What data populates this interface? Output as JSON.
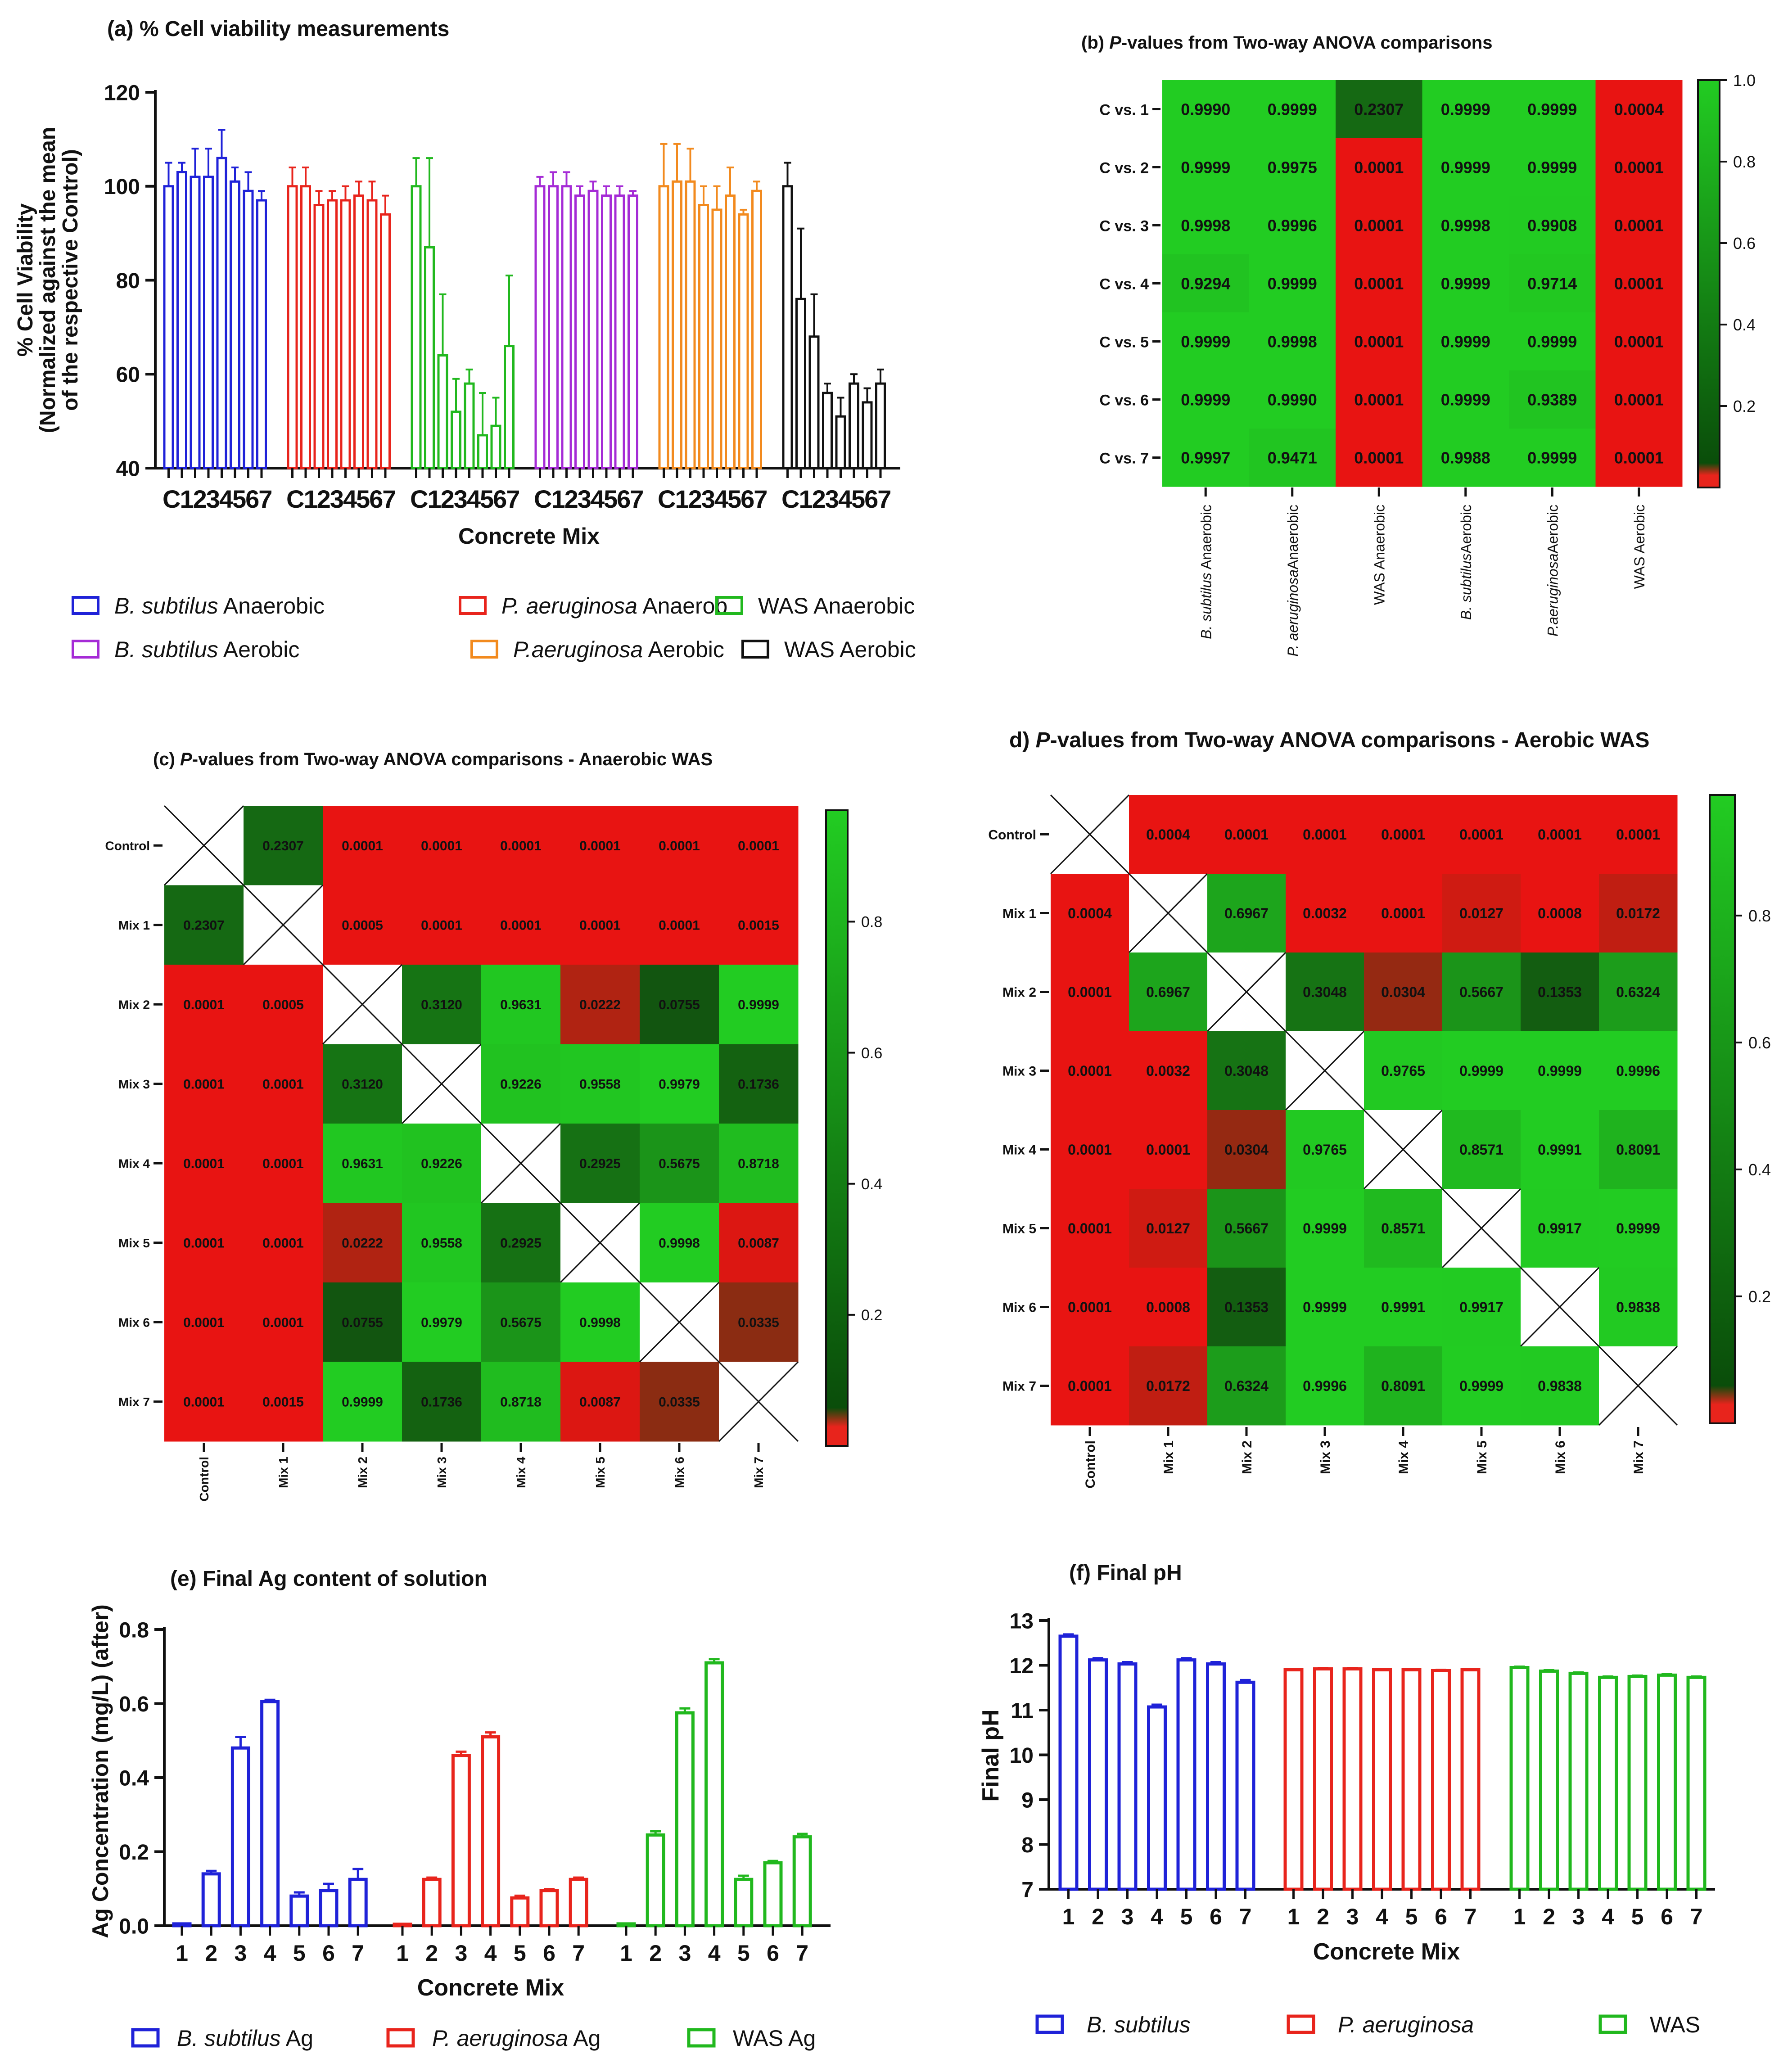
{
  "chart_data": [
    {
      "id": "a",
      "type": "bar",
      "title": "(a) % Cell viability measurements",
      "xlabel": "Concrete Mix",
      "ylabel_lines": [
        "% Cell Viability",
        "(Normalized against the mean",
        "of the respective Control)"
      ],
      "ylim": [
        40,
        120
      ],
      "yticks": [
        40,
        60,
        80,
        100,
        120
      ],
      "categories": [
        "C",
        "1",
        "2",
        "3",
        "4",
        "5",
        "6",
        "7"
      ],
      "series": [
        {
          "name": "B. subtilus Anaerobic",
          "italic": "B. subtilus",
          "rest": " Anaerobic",
          "color": "#1f22d8",
          "values": [
            100,
            103,
            102,
            102,
            106,
            101,
            99,
            97
          ],
          "errors": [
            5,
            2,
            6,
            6,
            6,
            3,
            4,
            2
          ]
        },
        {
          "name": "P. aeruginosa Anaerobic",
          "italic": "P. aeruginosa",
          "rest": " Anaerob",
          "color": "#e8241c",
          "values": [
            100,
            100,
            96,
            97,
            97,
            98,
            97,
            94
          ],
          "errors": [
            4,
            4,
            3,
            2,
            3,
            3,
            4,
            4
          ]
        },
        {
          "name": "WAS Anaerobic",
          "italic": "",
          "rest": "WAS Anaerobic",
          "color": "#21b81e",
          "values": [
            100,
            87,
            64,
            52,
            58,
            47,
            49,
            66
          ],
          "errors": [
            6,
            19,
            13,
            7,
            3,
            9,
            6,
            15
          ]
        },
        {
          "name": "B. subtilus Aerobic",
          "italic": "B. subtilus",
          "rest": " Aerobic",
          "color": "#a52bd6",
          "values": [
            100,
            100,
            100,
            98,
            99,
            98,
            98,
            98
          ],
          "errors": [
            2,
            3,
            3,
            2,
            2,
            2,
            2,
            1
          ]
        },
        {
          "name": "P.aeruginosa Aerobic",
          "italic": "P.aeruginosa",
          "rest": " Aerobic",
          "color": "#f28a1e",
          "values": [
            100,
            101,
            101,
            96,
            95,
            98,
            94,
            99
          ],
          "errors": [
            9,
            8,
            7,
            4,
            5,
            6,
            1,
            2
          ]
        },
        {
          "name": "WAS Aerobic",
          "italic": "",
          "rest": "WAS Aerobic",
          "color": "#111111",
          "values": [
            100,
            76,
            68,
            56,
            51,
            58,
            54,
            58
          ],
          "errors": [
            5,
            15,
            9,
            2,
            4,
            2,
            3,
            3
          ]
        }
      ]
    },
    {
      "id": "b",
      "type": "heatmap",
      "title_italic": "P",
      "title_rest": "-values from Two-way ANOVA comparisons",
      "rows": [
        "C vs. 1",
        "C vs. 2",
        "C vs. 3",
        "C vs. 4",
        "C vs. 5",
        "C vs. 6",
        "C vs. 7"
      ],
      "columns": [
        {
          "italic": "B. subtilus",
          "rest": " Anaerobic"
        },
        {
          "italic": "P. aeruginosa",
          "rest": "Anaerobic"
        },
        {
          "italic": "",
          "rest": "WAS Anaerobic"
        },
        {
          "italic": "B. subtilus",
          "rest": "Aerobic"
        },
        {
          "italic": "P.aeruginosa",
          "rest": "Aerobic"
        },
        {
          "italic": "",
          "rest": "WAS Aerobic"
        }
      ],
      "values": [
        [
          "0.9990",
          "0.9999",
          "0.2307",
          "0.9999",
          "0.9999",
          "0.0004"
        ],
        [
          "0.9999",
          "0.9975",
          "0.0001",
          "0.9999",
          "0.9999",
          "0.0001"
        ],
        [
          "0.9998",
          "0.9996",
          "0.0001",
          "0.9998",
          "0.9908",
          "0.0001"
        ],
        [
          "0.9294",
          "0.9999",
          "0.0001",
          "0.9999",
          "0.9714",
          "0.0001"
        ],
        [
          "0.9999",
          "0.9998",
          "0.0001",
          "0.9999",
          "0.9999",
          "0.0001"
        ],
        [
          "0.9999",
          "0.9990",
          "0.0001",
          "0.9999",
          "0.9389",
          "0.0001"
        ],
        [
          "0.9997",
          "0.9471",
          "0.0001",
          "0.9988",
          "0.9999",
          "0.0001"
        ]
      ],
      "colorbar_ticks": [
        "1.0",
        "0.8",
        "0.6",
        "0.4",
        "0.2"
      ]
    },
    {
      "id": "c",
      "type": "heatmap",
      "title_prefix": "(c) ",
      "title_italic": "P",
      "title_rest": "-values from Two-way ANOVA comparisons - Anaerobic WAS",
      "labels": [
        "Control",
        "Mix 1",
        "Mix 2",
        "Mix 3",
        "Mix 4",
        "Mix 5",
        "Mix 6",
        "Mix 7"
      ],
      "values": [
        [
          null,
          "0.2307",
          "0.0001",
          "0.0001",
          "0.0001",
          "0.0001",
          "0.0001",
          "0.0001"
        ],
        [
          "0.2307",
          null,
          "0.0005",
          "0.0001",
          "0.0001",
          "0.0001",
          "0.0001",
          "0.0015"
        ],
        [
          "0.0001",
          "0.0005",
          null,
          "0.3120",
          "0.9631",
          "0.0222",
          "0.0755",
          "0.9999"
        ],
        [
          "0.0001",
          "0.0001",
          "0.3120",
          null,
          "0.9226",
          "0.9558",
          "0.9979",
          "0.1736"
        ],
        [
          "0.0001",
          "0.0001",
          "0.9631",
          "0.9226",
          null,
          "0.2925",
          "0.5675",
          "0.8718"
        ],
        [
          "0.0001",
          "0.0001",
          "0.0222",
          "0.9558",
          "0.2925",
          null,
          "0.9998",
          "0.0087"
        ],
        [
          "0.0001",
          "0.0001",
          "0.0755",
          "0.9979",
          "0.5675",
          "0.9998",
          null,
          "0.0335"
        ],
        [
          "0.0001",
          "0.0015",
          "0.9999",
          "0.1736",
          "0.8718",
          "0.0087",
          "0.0335",
          null
        ]
      ],
      "colorbar_ticks": [
        "0.8",
        "0.6",
        "0.4",
        "0.2"
      ]
    },
    {
      "id": "d",
      "type": "heatmap",
      "title_prefix": "d) ",
      "title_italic": "P",
      "title_rest": "-values from Two-way ANOVA comparisons - Aerobic WAS",
      "labels": [
        "Control",
        "Mix 1",
        "Mix 2",
        "Mix 3",
        "Mix 4",
        "Mix 5",
        "Mix 6",
        "Mix 7"
      ],
      "values": [
        [
          null,
          "0.0004",
          "0.0001",
          "0.0001",
          "0.0001",
          "0.0001",
          "0.0001",
          "0.0001"
        ],
        [
          "0.0004",
          null,
          "0.6967",
          "0.0032",
          "0.0001",
          "0.0127",
          "0.0008",
          "0.0172"
        ],
        [
          "0.0001",
          "0.6967",
          null,
          "0.3048",
          "0.0304",
          "0.5667",
          "0.1353",
          "0.6324"
        ],
        [
          "0.0001",
          "0.0032",
          "0.3048",
          null,
          "0.9765",
          "0.9999",
          "0.9999",
          "0.9996"
        ],
        [
          "0.0001",
          "0.0001",
          "0.0304",
          "0.9765",
          null,
          "0.8571",
          "0.9991",
          "0.8091"
        ],
        [
          "0.0001",
          "0.0127",
          "0.5667",
          "0.9999",
          "0.8571",
          null,
          "0.9917",
          "0.9999"
        ],
        [
          "0.0001",
          "0.0008",
          "0.1353",
          "0.9999",
          "0.9991",
          "0.9917",
          null,
          "0.9838"
        ],
        [
          "0.0001",
          "0.0172",
          "0.6324",
          "0.9996",
          "0.8091",
          "0.9999",
          "0.9838",
          null
        ]
      ],
      "colorbar_ticks": [
        "0.8",
        "0.6",
        "0.4",
        "0.2"
      ]
    },
    {
      "id": "e",
      "type": "bar",
      "title": "(e) Final Ag content of solution",
      "xlabel": "Concrete Mix",
      "ylabel": "Ag Concentration (mg/L) (after)",
      "ylim": [
        0,
        0.8
      ],
      "yticks": [
        "0.0",
        "0.2",
        "0.4",
        "0.6",
        "0.8"
      ],
      "categories": [
        "1",
        "2",
        "3",
        "4",
        "5",
        "6",
        "7"
      ],
      "series": [
        {
          "name": "B. subtilus Ag",
          "italic": "B. subtilus",
          "rest": " Ag",
          "color": "#1f22d8",
          "values": [
            0.005,
            0.14,
            0.48,
            0.605,
            0.08,
            0.095,
            0.125
          ],
          "errors": [
            0.0,
            0.008,
            0.03,
            0.005,
            0.01,
            0.018,
            0.028
          ]
        },
        {
          "name": "P. aeruginosa Ag",
          "italic": "P. aeruginosa",
          "rest": " Ag",
          "color": "#e8241c",
          "values": [
            0.004,
            0.125,
            0.46,
            0.51,
            0.075,
            0.095,
            0.125
          ],
          "errors": [
            0.0,
            0.005,
            0.01,
            0.012,
            0.006,
            0.004,
            0.005
          ]
        },
        {
          "name": "WAS Ag",
          "italic": "",
          "rest": "WAS Ag",
          "color": "#21b81e",
          "values": [
            0.005,
            0.245,
            0.575,
            0.71,
            0.125,
            0.17,
            0.24
          ],
          "errors": [
            0.0,
            0.01,
            0.012,
            0.01,
            0.01,
            0.005,
            0.008
          ]
        }
      ]
    },
    {
      "id": "f",
      "type": "bar",
      "title": "(f) Final pH",
      "xlabel": "Concrete Mix",
      "ylabel": "Final pH",
      "ylim": [
        7,
        13
      ],
      "yticks": [
        "7",
        "8",
        "9",
        "10",
        "11",
        "12",
        "13"
      ],
      "categories": [
        "1",
        "2",
        "3",
        "4",
        "5",
        "6",
        "7"
      ],
      "series": [
        {
          "name": "B. subtilus",
          "italic": "B. subtilus",
          "rest": "",
          "color": "#1f22d8",
          "values": [
            12.65,
            12.12,
            12.03,
            11.07,
            12.12,
            12.03,
            11.62
          ],
          "errors": [
            0.04,
            0.04,
            0.04,
            0.05,
            0.04,
            0.04,
            0.05
          ]
        },
        {
          "name": "P. aeruginosa",
          "italic": "P. aeruginosa",
          "rest": "",
          "color": "#e8241c",
          "values": [
            11.9,
            11.92,
            11.92,
            11.9,
            11.9,
            11.88,
            11.9
          ],
          "errors": [
            0.02,
            0.02,
            0.02,
            0.02,
            0.02,
            0.02,
            0.02
          ]
        },
        {
          "name": "WAS",
          "italic": "",
          "rest": "WAS",
          "color": "#21b81e",
          "values": [
            11.95,
            11.87,
            11.82,
            11.73,
            11.75,
            11.78,
            11.73
          ],
          "errors": [
            0.02,
            0.02,
            0.02,
            0.02,
            0.02,
            0.02,
            0.02
          ]
        }
      ]
    }
  ]
}
